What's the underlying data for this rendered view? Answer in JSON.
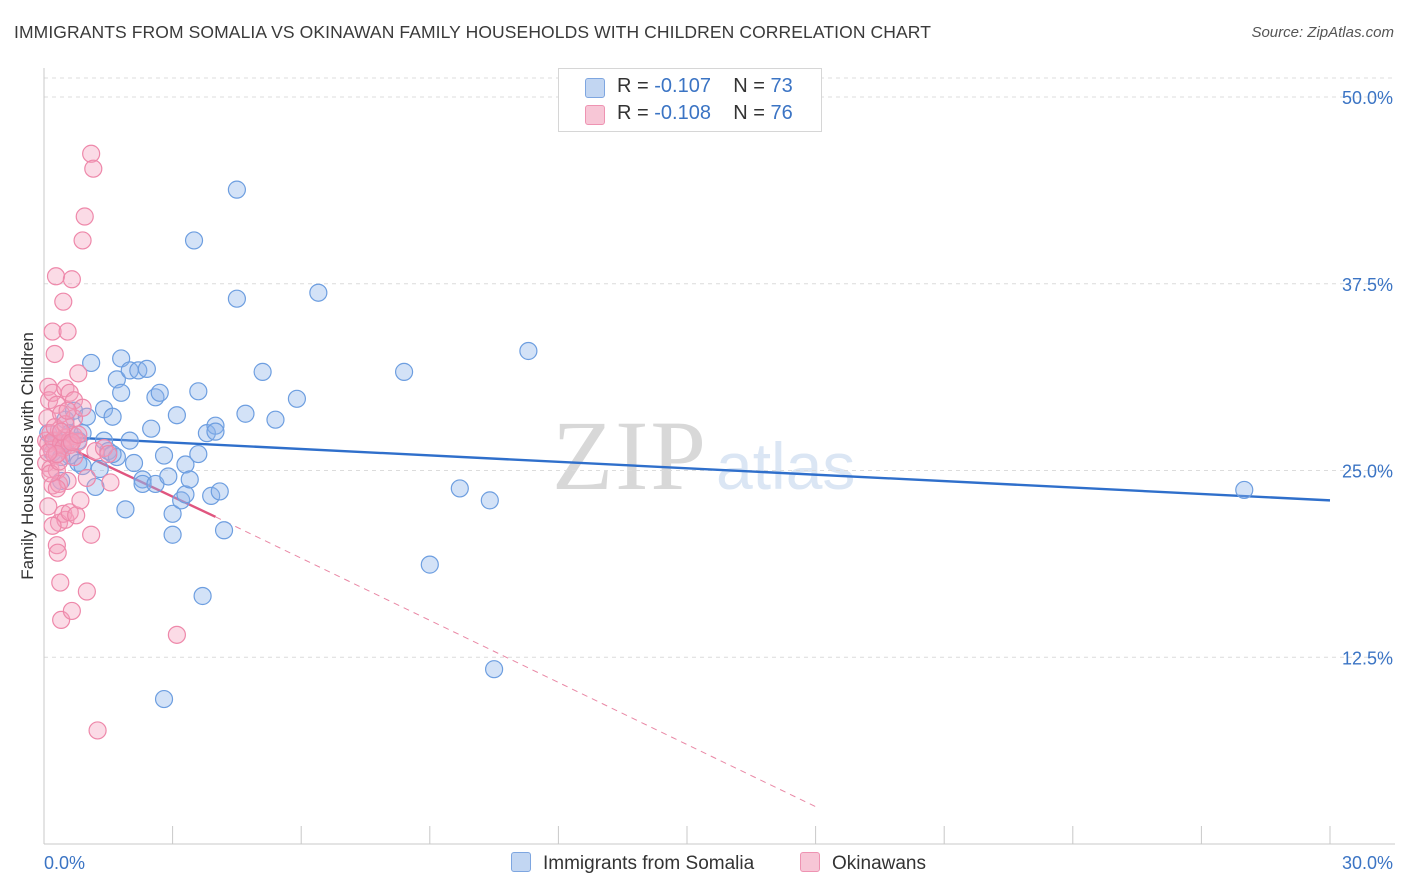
{
  "header": {
    "title": "IMMIGRANTS FROM SOMALIA VS OKINAWAN FAMILY HOUSEHOLDS WITH CHILDREN CORRELATION CHART",
    "source": "Source: ZipAtlas.com"
  },
  "watermark": {
    "zip": "ZIP",
    "atlas": "atlas"
  },
  "legend": {
    "series1": {
      "r_label": "R = ",
      "r_value": "-0.107",
      "n_label": "N = ",
      "n_value": "73",
      "color": "#6d9ee0"
    },
    "series2": {
      "r_label": "R = ",
      "r_value": "-0.108",
      "n_label": "N = ",
      "n_value": "76",
      "color": "#ee88aa"
    }
  },
  "bottom_legend": {
    "series1_label": "Immigrants from Somalia",
    "series2_label": "Okinawans"
  },
  "chart_data": {
    "type": "scatter",
    "title": "IMMIGRANTS FROM SOMALIA VS OKINAWAN FAMILY HOUSEHOLDS WITH CHILDREN CORRELATION CHART",
    "xlabel": "",
    "ylabel": "Family Households with Children",
    "xlim": [
      0,
      30
    ],
    "ylim": [
      0,
      50
    ],
    "x_tick_labels": [
      "0.0%",
      "30.0%"
    ],
    "y_ticks": [
      12.5,
      25.0,
      37.5,
      50.0
    ],
    "y_tick_labels": [
      "12.5%",
      "25.0%",
      "37.5%",
      "50.0%"
    ],
    "grid": true,
    "series": [
      {
        "name": "Immigrants from Somalia",
        "color": "#6d9ee0",
        "line_color": "#2f6fcb",
        "trend": {
          "x": [
            0,
            30
          ],
          "y": [
            27.3,
            23.0
          ],
          "dashed_extension": false
        },
        "points": [
          [
            0.1,
            27.5
          ],
          [
            0.2,
            26.2
          ],
          [
            0.3,
            27.0
          ],
          [
            0.4,
            24.3
          ],
          [
            0.5,
            28.4
          ],
          [
            0.5,
            26.8
          ],
          [
            0.6,
            26.0
          ],
          [
            0.6,
            27.5
          ],
          [
            0.7,
            29.0
          ],
          [
            0.8,
            25.5
          ],
          [
            0.8,
            27.0
          ],
          [
            0.9,
            27.5
          ],
          [
            1.0,
            28.6
          ],
          [
            1.1,
            32.2
          ],
          [
            1.2,
            23.9
          ],
          [
            1.3,
            25.1
          ],
          [
            1.4,
            27.0
          ],
          [
            1.4,
            29.1
          ],
          [
            1.5,
            26.3
          ],
          [
            1.6,
            28.6
          ],
          [
            1.7,
            25.9
          ],
          [
            1.7,
            31.1
          ],
          [
            1.8,
            32.5
          ],
          [
            1.8,
            30.2
          ],
          [
            1.9,
            22.4
          ],
          [
            2.0,
            31.7
          ],
          [
            2.0,
            27.0
          ],
          [
            2.1,
            25.5
          ],
          [
            2.2,
            31.7
          ],
          [
            2.3,
            24.4
          ],
          [
            2.3,
            24.1
          ],
          [
            2.4,
            31.8
          ],
          [
            2.5,
            27.8
          ],
          [
            2.6,
            24.1
          ],
          [
            2.6,
            29.9
          ],
          [
            2.7,
            30.2
          ],
          [
            2.8,
            26.0
          ],
          [
            2.9,
            24.6
          ],
          [
            3.0,
            22.1
          ],
          [
            3.0,
            20.7
          ],
          [
            3.1,
            28.7
          ],
          [
            3.2,
            23.0
          ],
          [
            3.3,
            25.4
          ],
          [
            3.3,
            23.4
          ],
          [
            3.4,
            24.4
          ],
          [
            3.5,
            40.4
          ],
          [
            3.6,
            26.1
          ],
          [
            3.6,
            30.3
          ],
          [
            3.7,
            16.6
          ],
          [
            3.8,
            27.5
          ],
          [
            3.9,
            23.3
          ],
          [
            4.0,
            28.0
          ],
          [
            4.0,
            27.6
          ],
          [
            4.1,
            23.6
          ],
          [
            4.2,
            21.0
          ],
          [
            4.5,
            43.8
          ],
          [
            4.5,
            36.5
          ],
          [
            4.7,
            28.8
          ],
          [
            5.1,
            31.6
          ],
          [
            5.4,
            28.4
          ],
          [
            5.9,
            29.8
          ],
          [
            6.4,
            36.9
          ],
          [
            8.4,
            31.6
          ],
          [
            9.0,
            18.7
          ],
          [
            9.7,
            23.8
          ],
          [
            10.4,
            23.0
          ],
          [
            10.5,
            11.7
          ],
          [
            11.3,
            33.0
          ],
          [
            28.0,
            23.7
          ],
          [
            2.8,
            9.7
          ],
          [
            1.6,
            26.1
          ],
          [
            0.9,
            25.3
          ],
          [
            0.4,
            25.9
          ]
        ]
      },
      {
        "name": "Okinawans",
        "color": "#ee88aa",
        "line_color": "#e0557f",
        "trend": {
          "x": [
            0,
            4.0
          ],
          "y": [
            27.3,
            21.9
          ],
          "dashed_extension": true,
          "dash_to": [
            18.0,
            2.5
          ]
        },
        "points": [
          [
            0.05,
            27.0
          ],
          [
            0.05,
            25.5
          ],
          [
            0.08,
            28.5
          ],
          [
            0.1,
            26.8
          ],
          [
            0.1,
            30.6
          ],
          [
            0.1,
            22.6
          ],
          [
            0.12,
            29.7
          ],
          [
            0.15,
            27.5
          ],
          [
            0.15,
            25.1
          ],
          [
            0.18,
            26.4
          ],
          [
            0.2,
            30.2
          ],
          [
            0.2,
            24.0
          ],
          [
            0.2,
            34.3
          ],
          [
            0.22,
            27.0
          ],
          [
            0.25,
            32.8
          ],
          [
            0.25,
            26.0
          ],
          [
            0.28,
            38.0
          ],
          [
            0.3,
            29.4
          ],
          [
            0.3,
            25.0
          ],
          [
            0.3,
            20.0
          ],
          [
            0.32,
            19.5
          ],
          [
            0.35,
            27.7
          ],
          [
            0.35,
            24.1
          ],
          [
            0.35,
            21.5
          ],
          [
            0.38,
            17.5
          ],
          [
            0.4,
            28.8
          ],
          [
            0.4,
            26.8
          ],
          [
            0.4,
            15.0
          ],
          [
            0.45,
            36.3
          ],
          [
            0.45,
            22.1
          ],
          [
            0.5,
            30.5
          ],
          [
            0.5,
            27.2
          ],
          [
            0.5,
            21.7
          ],
          [
            0.55,
            34.3
          ],
          [
            0.55,
            24.3
          ],
          [
            0.6,
            30.2
          ],
          [
            0.6,
            27.0
          ],
          [
            0.6,
            22.2
          ],
          [
            0.65,
            37.8
          ],
          [
            0.65,
            15.6
          ],
          [
            0.7,
            29.7
          ],
          [
            0.7,
            28.5
          ],
          [
            0.7,
            27.3
          ],
          [
            0.75,
            22.0
          ],
          [
            0.8,
            31.5
          ],
          [
            0.8,
            26.9
          ],
          [
            0.85,
            23.0
          ],
          [
            0.9,
            40.4
          ],
          [
            0.9,
            29.2
          ],
          [
            0.95,
            42.0
          ],
          [
            1.0,
            24.5
          ],
          [
            1.0,
            16.9
          ],
          [
            1.1,
            46.2
          ],
          [
            1.1,
            20.7
          ],
          [
            1.15,
            45.2
          ],
          [
            1.2,
            26.3
          ],
          [
            1.25,
            7.6
          ],
          [
            1.4,
            26.5
          ],
          [
            1.5,
            26.1
          ],
          [
            1.55,
            24.2
          ],
          [
            3.1,
            14.0
          ],
          [
            0.3,
            23.8
          ],
          [
            0.45,
            26.5
          ],
          [
            0.25,
            27.9
          ],
          [
            0.6,
            26.7
          ],
          [
            0.15,
            24.8
          ],
          [
            0.35,
            25.6
          ],
          [
            0.5,
            28.1
          ],
          [
            0.7,
            25.9
          ],
          [
            0.2,
            21.3
          ],
          [
            0.4,
            27.6
          ],
          [
            0.55,
            29.0
          ],
          [
            0.3,
            26.1
          ],
          [
            0.65,
            26.9
          ],
          [
            0.8,
            27.4
          ],
          [
            0.1,
            26.2
          ]
        ]
      }
    ]
  }
}
